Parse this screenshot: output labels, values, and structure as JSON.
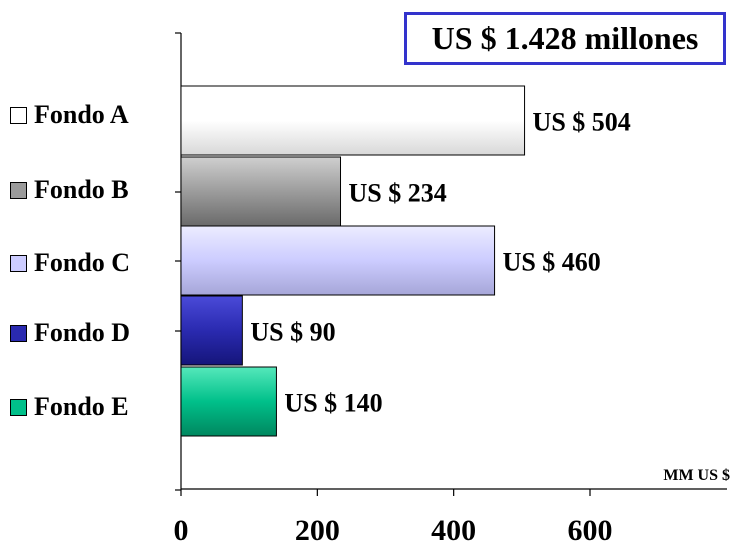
{
  "total_label": "US $ 1.428 millones",
  "chart_data": {
    "type": "bar",
    "orientation": "horizontal",
    "categories": [
      "Fondo A",
      "Fondo B",
      "Fondo C",
      "Fondo D",
      "Fondo E"
    ],
    "values": [
      504,
      234,
      460,
      90,
      140
    ],
    "data_labels": [
      "US $ 504",
      "US $ 234",
      "US $ 460",
      "US $ 90",
      "US $ 140"
    ],
    "colors": [
      "#ffffff",
      "#9a9a9a",
      "#ccccff",
      "#2a2ab0",
      "#00c08a"
    ],
    "xlim": [
      0,
      600
    ],
    "xticks": [
      0,
      200,
      400,
      600
    ],
    "xtick_labels": [
      "0",
      "200",
      "400",
      "600"
    ],
    "xlabel": "MM US $",
    "grid": false,
    "legend": "left, inline with category labels"
  }
}
